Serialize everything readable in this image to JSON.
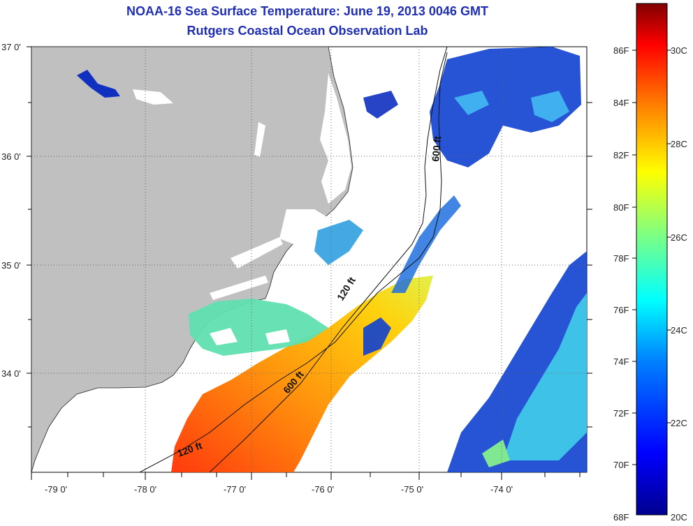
{
  "header": {
    "title": "NOAA-16 Sea Surface Temperature:  June 19, 2013 0046 GMT",
    "subtitle": "Rutgers Coastal Ocean Observation Lab"
  },
  "map": {
    "lon_labels": [
      "-79 0'",
      "-78 0'",
      "-77 0'",
      "-76 0'",
      "-75 0'",
      "-74 0'"
    ],
    "lat_labels": [
      "37 0'",
      "36 0'",
      "35 0'",
      "34 0'"
    ],
    "contours": {
      "c120_south": "120 ft",
      "c120_north": "120 ft",
      "c600_south": "600 ft",
      "c600_north": "600 ft"
    },
    "colors": {
      "land": "#c0c0c0",
      "background": "#ffffff"
    }
  },
  "colorbar": {
    "fahrenheit_labels": [
      "86F",
      "84F",
      "82F",
      "80F",
      "78F",
      "76F",
      "74F",
      "72F",
      "70F",
      "68F"
    ],
    "celsius_labels": [
      "30C",
      "28C",
      "26C",
      "24C",
      "22C",
      "20C"
    ],
    "colors": [
      "#00008f",
      "#0000ff",
      "#0080ff",
      "#00ffff",
      "#80ff80",
      "#ffff00",
      "#ff8000",
      "#ff0000",
      "#800000"
    ]
  }
}
